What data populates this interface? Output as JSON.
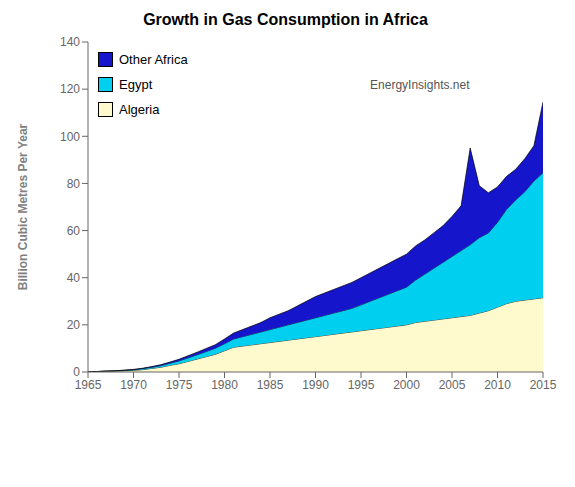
{
  "chart_data": {
    "type": "area",
    "stacked": true,
    "title": "Growth in Gas Consumption in Africa",
    "y_label": "Billion Cubic Metres  Per Year",
    "annotations": [
      "EnergyInsights.net"
    ],
    "xlim": [
      1965,
      2015
    ],
    "ylim": [
      0,
      140
    ],
    "xticks": [
      1965,
      1970,
      1975,
      1980,
      1985,
      1990,
      1995,
      2000,
      2005,
      2010,
      2015
    ],
    "yticks": [
      0,
      20,
      40,
      60,
      80,
      100,
      120,
      140
    ],
    "grid": false,
    "legend": "upper left",
    "x": [
      1965,
      1966,
      1967,
      1968,
      1969,
      1970,
      1971,
      1972,
      1973,
      1974,
      1975,
      1976,
      1977,
      1978,
      1979,
      1980,
      1981,
      1982,
      1983,
      1984,
      1985,
      1986,
      1987,
      1988,
      1989,
      1990,
      1991,
      1992,
      1993,
      1994,
      1995,
      1996,
      1997,
      1998,
      1999,
      2000,
      2001,
      2002,
      2003,
      2004,
      2005,
      2006,
      2007,
      2008,
      2009,
      2010,
      2011,
      2012,
      2013,
      2014,
      2015
    ],
    "series": [
      {
        "name": "Algeria",
        "color": "#FFFACD",
        "values": [
          0.1,
          0.2,
          0.3,
          0.4,
          0.5,
          0.7,
          1.0,
          1.5,
          2.0,
          2.8,
          3.5,
          4.5,
          5.5,
          6.5,
          7.5,
          9.0,
          10.5,
          11.0,
          11.5,
          12.0,
          12.5,
          13.0,
          13.5,
          14.0,
          14.5,
          15.0,
          15.5,
          16.0,
          16.5,
          17.0,
          17.5,
          18.0,
          18.5,
          19.0,
          19.5,
          20.0,
          21.0,
          21.5,
          22.0,
          22.5,
          23.0,
          23.5,
          24.0,
          25.0,
          26.0,
          27.5,
          29.0,
          30.0,
          30.5,
          31.0,
          31.5
        ]
      },
      {
        "name": "Egypt",
        "color": "#00CFEF",
        "values": [
          0.0,
          0.0,
          0.1,
          0.1,
          0.2,
          0.3,
          0.4,
          0.5,
          0.7,
          0.9,
          1.2,
          1.5,
          1.8,
          2.2,
          2.6,
          3.0,
          3.5,
          4.0,
          4.5,
          5.0,
          5.5,
          6.0,
          6.5,
          7.0,
          7.5,
          8.0,
          8.5,
          9.0,
          9.5,
          10.0,
          11.0,
          12.0,
          13.0,
          14.0,
          15.0,
          16.0,
          18.0,
          20.0,
          22.0,
          24.0,
          26.0,
          28.0,
          30.0,
          32.0,
          33.0,
          36.0,
          40.0,
          43.0,
          46.0,
          50.0,
          53.0
        ]
      },
      {
        "name": "Other Africa",
        "color": "#1515CC",
        "values": [
          0.0,
          0.0,
          0.0,
          0.0,
          0.1,
          0.1,
          0.2,
          0.3,
          0.4,
          0.5,
          0.7,
          0.9,
          1.1,
          1.3,
          1.5,
          2.0,
          2.5,
          3.0,
          3.5,
          4.0,
          5.0,
          5.5,
          6.0,
          7.0,
          8.0,
          9.0,
          9.5,
          10.0,
          10.5,
          11.0,
          11.5,
          12.0,
          12.5,
          13.0,
          13.5,
          14.0,
          14.5,
          14.5,
          15.0,
          15.5,
          17.0,
          19.0,
          41.0,
          22.0,
          17.0,
          15.0,
          14.0,
          13.0,
          14.0,
          15.0,
          30.0
        ]
      }
    ]
  }
}
